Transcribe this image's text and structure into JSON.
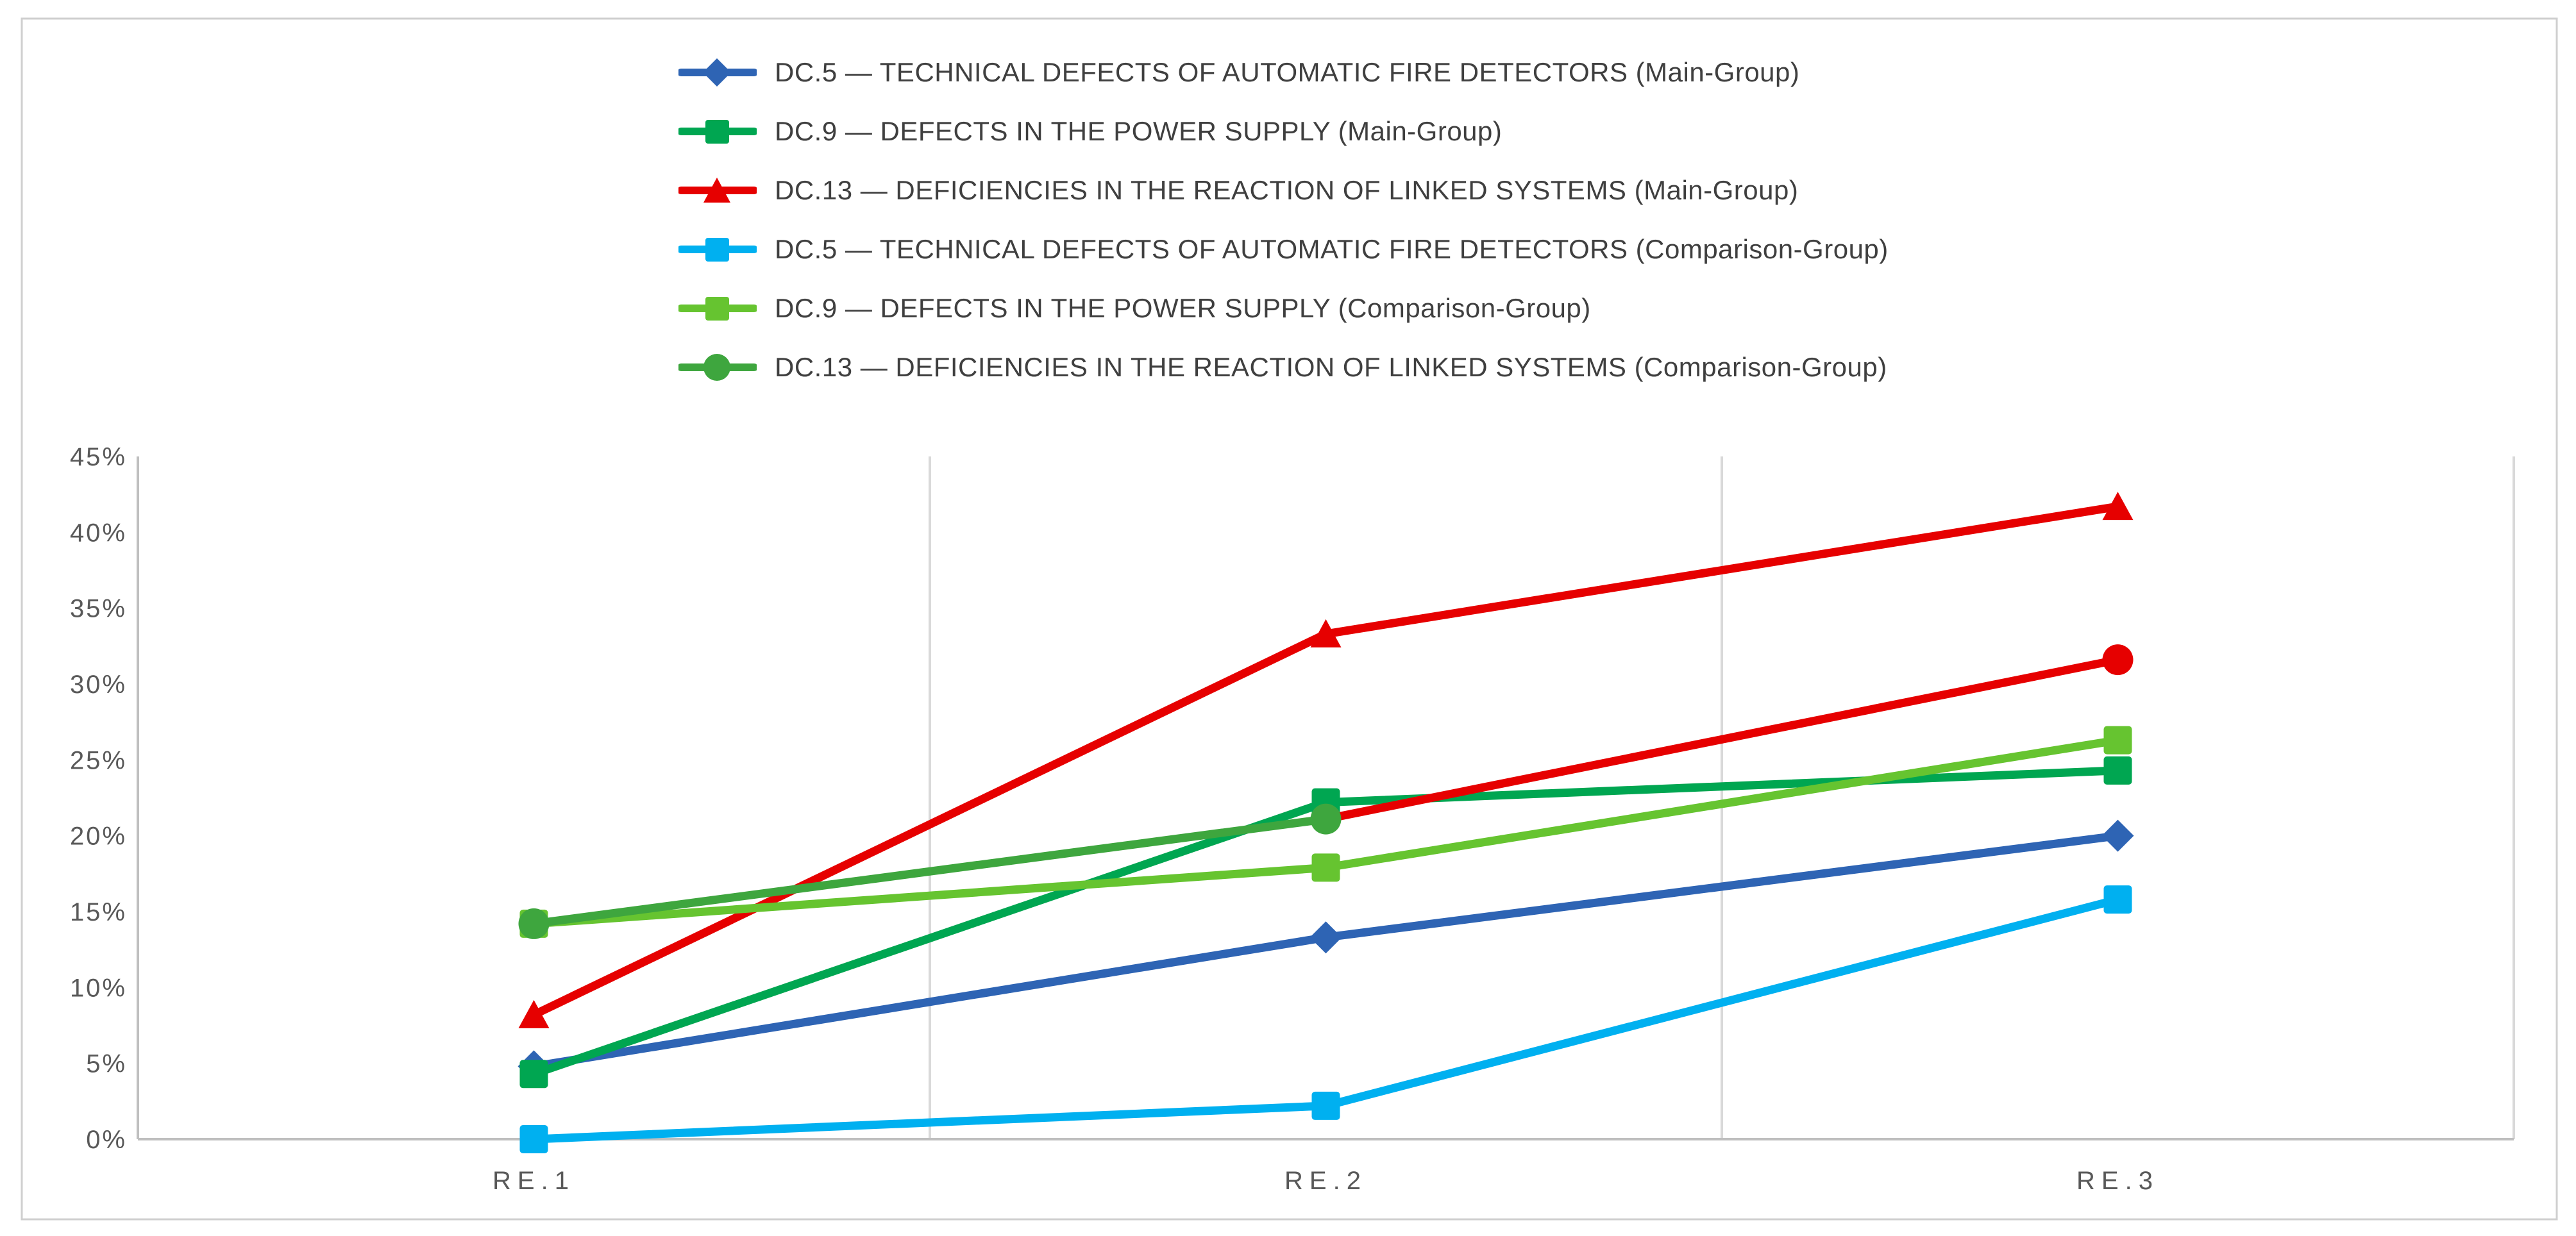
{
  "chart_data": {
    "type": "line",
    "categories": [
      "RE.1",
      "RE.2",
      "RE.3"
    ],
    "ylim": [
      0,
      45
    ],
    "ytick_step": 5,
    "y_tick_labels": [
      "0%",
      "5%",
      "10%",
      "15%",
      "20%",
      "25%",
      "30%",
      "35%",
      "40%",
      "45%"
    ],
    "grid": "vertical-category-boundaries",
    "legend_position": "top-center",
    "series": [
      {
        "name": "DC.5 — TECHNICAL DEFECTS OF AUTOMATIC FIRE DETECTORS (Main-Group)",
        "marker": "diamond",
        "color": "#2e64b4",
        "values": [
          4.8,
          13.3,
          20.0
        ]
      },
      {
        "name": "DC.9 — DEFECTS IN THE POWER SUPPLY (Main-Group)",
        "marker": "square",
        "color": "#00a651",
        "values": [
          4.3,
          22.2,
          24.3
        ]
      },
      {
        "name": "DC.13 — DEFICIENCIES IN THE REACTION OF LINKED SYSTEMS (Main-Group)",
        "marker": "triangle",
        "color": "#e60000",
        "values": [
          8.2,
          33.3,
          41.7
        ]
      },
      {
        "name": "DC.5 — TECHNICAL DEFECTS OF AUTOMATIC FIRE DETECTORS (Comparison-Group)",
        "marker": "square",
        "color": "#00b0f0",
        "values": [
          0.0,
          2.2,
          15.8
        ]
      },
      {
        "name": "DC.9 — DEFECTS IN THE POWER SUPPLY (Comparison-Group)",
        "marker": "square",
        "color": "#66c430",
        "values": [
          14.2,
          17.9,
          26.3
        ]
      },
      {
        "name": "DC.13 — DEFICIENCIES IN THE REACTION OF LINKED SYSTEMS (Comparison-Group)",
        "marker": "circle",
        "color": "#3ea63e",
        "values": [
          14.2,
          21.1,
          31.6
        ],
        "segment_colors": [
          "#3ea63e",
          "#e60000"
        ],
        "marker_colors": [
          "#3ea63e",
          "#3ea63e",
          "#e60000"
        ]
      }
    ],
    "style_colors": {
      "frame_border": "#cfcfcf",
      "axis_line": "#bfbfbf",
      "gridline": "#d9d9d9",
      "tick_text": "#595959",
      "legend_text": "#3f3f3f",
      "background": "#ffffff"
    }
  }
}
